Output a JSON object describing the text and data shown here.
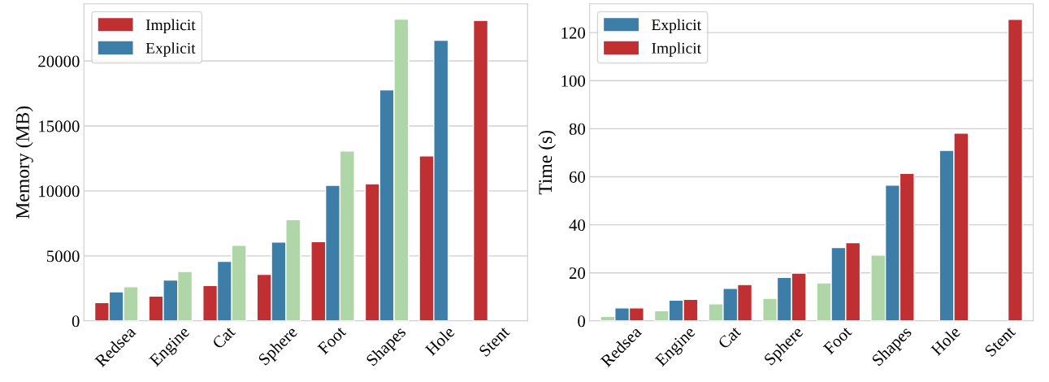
{
  "chart_data": [
    {
      "type": "bar",
      "ylabel": "Memory (MB)",
      "categories": [
        "Redsea",
        "Engine",
        "Cat",
        "Sphere",
        "Foot",
        "Shapes",
        "Hole",
        "Stent"
      ],
      "ylim": [
        0,
        24400
      ],
      "yticks": [
        0,
        5000,
        10000,
        15000,
        20000
      ],
      "grid": "y",
      "legend": "top left",
      "series": [
        {
          "name": "Implicit",
          "color": "#c03032",
          "values": [
            1400,
            1900,
            2720,
            3580,
            6100,
            10550,
            12700,
            23120
          ]
        },
        {
          "name": "Explicit",
          "color": "#3d7ea8",
          "values": [
            2240,
            3150,
            4580,
            6070,
            10430,
            17780,
            21590,
            null
          ]
        },
        {
          "color": "#aed6a6",
          "values": [
            2620,
            3800,
            5820,
            7780,
            13070,
            23220,
            null,
            null
          ]
        }
      ]
    },
    {
      "type": "bar",
      "ylabel": "Time (s)",
      "categories": [
        "Redsea",
        "Engine",
        "Cat",
        "Sphere",
        "Foot",
        "Shapes",
        "Hole",
        "Stent"
      ],
      "ylim": [
        0,
        132
      ],
      "yticks": [
        0,
        20,
        40,
        60,
        80,
        100,
        120
      ],
      "grid": "y",
      "legend": "top left",
      "series": [
        {
          "color": "#aed6a6",
          "values": [
            1.9,
            4.2,
            7.1,
            9.4,
            15.8,
            27.4,
            null,
            null
          ]
        },
        {
          "name": "Explicit",
          "color": "#3d7ea8",
          "values": [
            5.4,
            8.6,
            13.5,
            18.1,
            30.5,
            56.5,
            71.0,
            null
          ]
        },
        {
          "name": "Implicit",
          "color": "#c03032",
          "values": [
            5.4,
            9.0,
            15.1,
            19.9,
            32.6,
            61.4,
            78.2,
            125.5
          ]
        }
      ]
    }
  ]
}
